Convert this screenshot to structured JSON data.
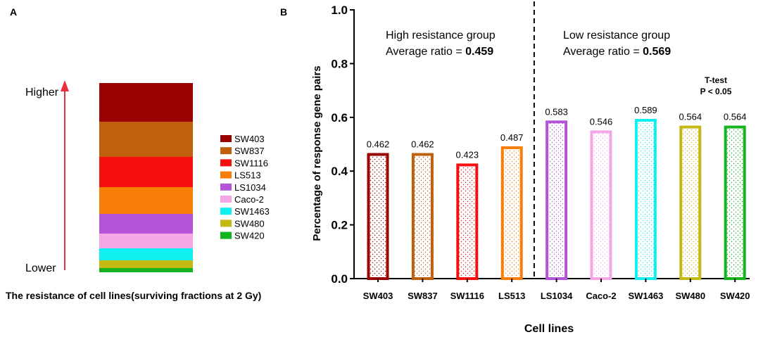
{
  "panel_a": {
    "label": "A",
    "higher_label": "Higher",
    "lower_label": "Lower",
    "caption": "The resistance of cell lines(surviving fractions at 2 Gy)",
    "arrow_color": "#e8303a",
    "stack": [
      {
        "name": "SW403",
        "color": "#9b0202"
      },
      {
        "name": "SW837",
        "color": "#c0600e"
      },
      {
        "name": "SW1116",
        "color": "#f50f0f"
      },
      {
        "name": "LS513",
        "color": "#f77e07"
      },
      {
        "name": "LS1034",
        "color": "#b554d8"
      },
      {
        "name": "Caco-2",
        "color": "#f5a6e4"
      },
      {
        "name": "SW1463",
        "color": "#10f0f0"
      },
      {
        "name": "SW480",
        "color": "#c4b813"
      },
      {
        "name": "SW420",
        "color": "#13b41d"
      }
    ]
  },
  "panel_b": {
    "label": "B",
    "high_group_title": "High resistance group",
    "high_group_ratio_prefix": "Average ratio = ",
    "high_group_ratio": "0.459",
    "low_group_title": "Low resistance group",
    "low_group_ratio_prefix": "Average ratio = ",
    "low_group_ratio": "0.569",
    "ttest_title": "T-test",
    "ttest_p": "P < 0.05"
  },
  "chart_data": {
    "type": "bar",
    "title": "",
    "xlabel": "Cell lines",
    "ylabel": "Percentage of response gene pairs",
    "ylim": [
      0,
      1.0
    ],
    "yticks": [
      "0.0",
      "0.2",
      "0.4",
      "0.6",
      "0.8",
      "1.0"
    ],
    "categories": [
      "SW403",
      "SW837",
      "SW1116",
      "LS513",
      "LS1034",
      "Caco-2",
      "SW1463",
      "SW480",
      "SW420"
    ],
    "values": [
      0.462,
      0.462,
      0.423,
      0.487,
      0.583,
      0.546,
      0.589,
      0.564,
      0.564
    ],
    "value_labels": [
      "0.462",
      "0.462",
      "0.423",
      "0.487",
      "0.583",
      "0.546",
      "0.589",
      "0.564",
      "0.564"
    ],
    "colors": [
      "#9b0202",
      "#c0600e",
      "#f50f0f",
      "#f77e07",
      "#b554d8",
      "#f5a6e4",
      "#10f0f0",
      "#c4b813",
      "#13b41d"
    ],
    "divider_after_category": "LS513",
    "grid": false
  }
}
